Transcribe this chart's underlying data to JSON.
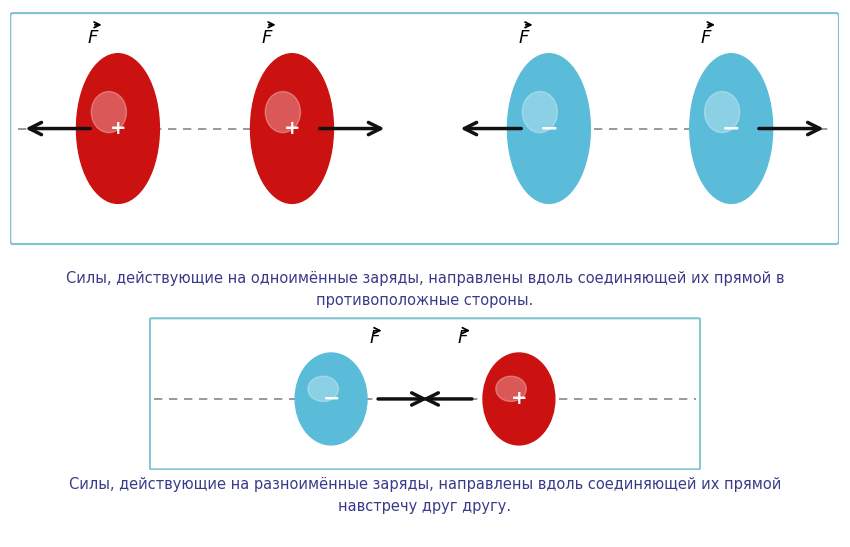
{
  "bg_color": "#ffffff",
  "box_edge_color": "#7fc4d0",
  "red_color": "#cc1111",
  "red_dark": "#8b0000",
  "blue_color": "#5bbcda",
  "blue_dark": "#3a9ab8",
  "text_color": "#3a3a8a",
  "arrow_color": "#111111",
  "dash_color": "#888888",
  "caption1": "Силы, действующие на одноимённые заряды, направлены вдоль соединяющей их прямой в\nпротивоположные стороны.",
  "caption2": "Силы, действующие на разноимённые заряды, направлены вдоль соединяющей их прямой\nнавстречу друг другу."
}
